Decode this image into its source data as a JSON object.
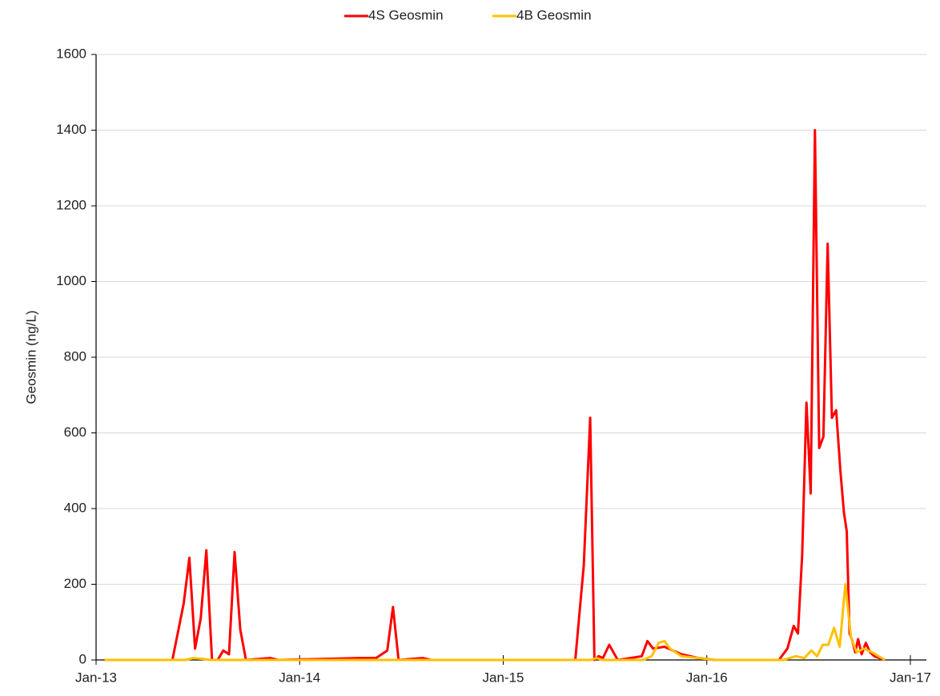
{
  "chart_data": {
    "type": "line",
    "y_label": "Geosmin  (ng/L)",
    "xlim": [
      "2013-01",
      "2017-01"
    ],
    "xticks": [
      {
        "value": "2013-01",
        "label": "Jan-13"
      },
      {
        "value": "2014-01",
        "label": "Jan-14"
      },
      {
        "value": "2015-01",
        "label": "Jan-15"
      },
      {
        "value": "2016-01",
        "label": "Jan-16"
      },
      {
        "value": "2017-01",
        "label": "Jan-17"
      }
    ],
    "ylim": [
      0,
      1600
    ],
    "yticks": [
      0,
      200,
      400,
      600,
      800,
      1000,
      1200,
      1400,
      1600
    ],
    "grid": true,
    "legend": "top",
    "series": [
      {
        "name": "4S Geosmin",
        "color": "#ff0000",
        "x": [
          "2013-01",
          "2013-05",
          "2013-06",
          "2013-06",
          "2013-06",
          "2013-07",
          "2013-07",
          "2013-07",
          "2013-08",
          "2013-08",
          "2013-08",
          "2013-09",
          "2013-09",
          "2013-09",
          "2013-11",
          "2013-11",
          "2014-04",
          "2014-05",
          "2014-06",
          "2014-06",
          "2014-06",
          "2014-08",
          "2014-08",
          "2015-05",
          "2015-05",
          "2015-06",
          "2015-06",
          "2015-06",
          "2015-06",
          "2015-07",
          "2015-07",
          "2015-08",
          "2015-09",
          "2015-09",
          "2015-09",
          "2015-10",
          "2015-11",
          "2015-12",
          "2016-01",
          "2016-05",
          "2016-05",
          "2016-06",
          "2016-06",
          "2016-06",
          "2016-06",
          "2016-07",
          "2016-07",
          "2016-07",
          "2016-07",
          "2016-08",
          "2016-08",
          "2016-08",
          "2016-08",
          "2016-09",
          "2016-09",
          "2016-09",
          "2016-09",
          "2016-09",
          "2016-09",
          "2016-10",
          "2016-10",
          "2016-10",
          "2016-10",
          "2016-11"
        ],
        "values": [
          0,
          0,
          150,
          270,
          30,
          110,
          290,
          0,
          0,
          25,
          15,
          285,
          80,
          0,
          5,
          0,
          5,
          5,
          25,
          140,
          0,
          5,
          0,
          0,
          250,
          640,
          0,
          10,
          5,
          40,
          0,
          5,
          10,
          50,
          30,
          35,
          15,
          5,
          0,
          0,
          30,
          90,
          70,
          280,
          680,
          440,
          1400,
          560,
          590,
          1100,
          640,
          660,
          500,
          390,
          340,
          70,
          50,
          20,
          55,
          15,
          45,
          20,
          10,
          0
        ]
      },
      {
        "name": "4B Geosmin",
        "color": "#ffc000",
        "x": [
          "2013-01",
          "2013-06",
          "2013-06",
          "2013-07",
          "2013-07",
          "2015-06",
          "2015-06",
          "2015-06",
          "2015-09",
          "2015-09",
          "2015-10",
          "2015-10",
          "2015-10",
          "2015-11",
          "2015-12",
          "2016-01",
          "2016-05",
          "2016-06",
          "2016-06",
          "2016-07",
          "2016-07",
          "2016-07",
          "2016-08",
          "2016-08",
          "2016-08",
          "2016-09",
          "2016-09",
          "2016-09",
          "2016-10",
          "2016-10",
          "2016-11"
        ],
        "values": [
          0,
          0,
          5,
          3,
          0,
          0,
          5,
          0,
          0,
          10,
          45,
          50,
          30,
          10,
          5,
          0,
          0,
          10,
          5,
          25,
          10,
          40,
          40,
          85,
          35,
          200,
          60,
          20,
          30,
          20,
          0
        ]
      }
    ]
  }
}
